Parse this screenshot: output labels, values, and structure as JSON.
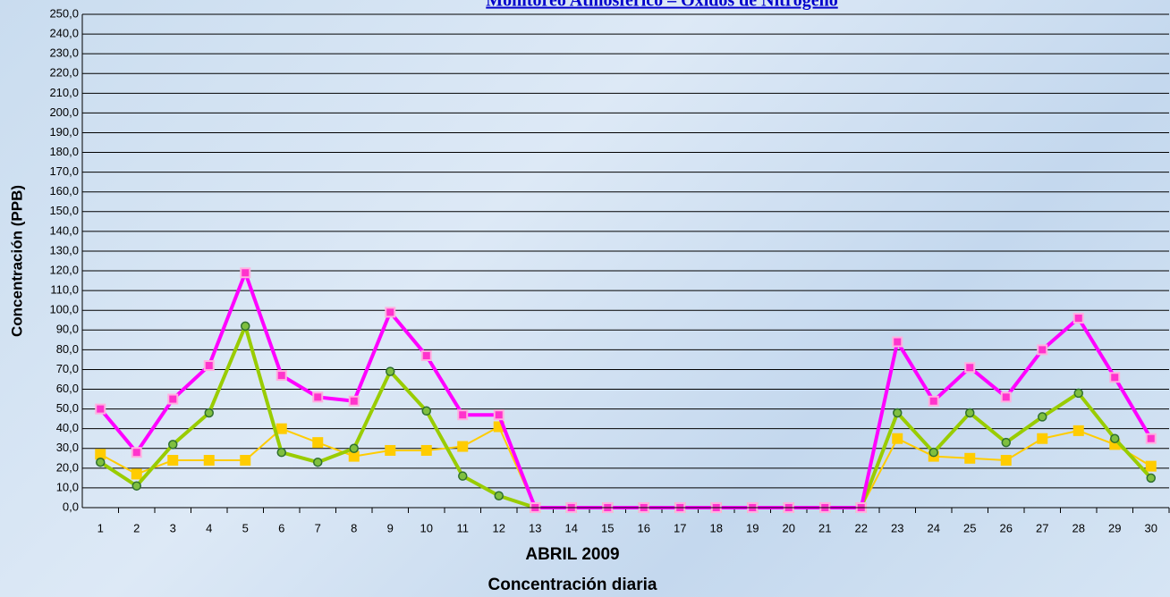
{
  "chart_data": {
    "type": "line",
    "title": "Monitoreo Atmosférico – Óxidos de Nitrógeno",
    "x_label": "ABRIL 2009",
    "subtitle": "Concentración diaria",
    "y_label": "Concentración  (PPB)",
    "categories": [
      1,
      2,
      3,
      4,
      5,
      6,
      7,
      8,
      9,
      10,
      11,
      12,
      13,
      14,
      15,
      16,
      17,
      18,
      19,
      20,
      21,
      22,
      23,
      24,
      25,
      26,
      27,
      28,
      29,
      30
    ],
    "series": [
      {
        "color": "#ffcc00",
        "marker": "square",
        "values": [
          27,
          17,
          24,
          24,
          24,
          40,
          33,
          26,
          29,
          29,
          31,
          41,
          0,
          0,
          0,
          0,
          0,
          0,
          0,
          0,
          0,
          0,
          35,
          26,
          25,
          24,
          35,
          39,
          32,
          21
        ]
      },
      {
        "color": "#99cc00",
        "marker": "circle",
        "values": [
          23,
          11,
          32,
          48,
          92,
          28,
          23,
          30,
          69,
          49,
          16,
          6,
          0,
          0,
          0,
          0,
          0,
          0,
          0,
          0,
          0,
          0,
          48,
          28,
          48,
          33,
          46,
          58,
          35,
          15
        ]
      },
      {
        "color": "#ff00ff",
        "marker": "square",
        "values": [
          50,
          28,
          55,
          72,
          119,
          67,
          56,
          54,
          99,
          77,
          47,
          47,
          0,
          0,
          0,
          0,
          0,
          0,
          0,
          0,
          0,
          0,
          84,
          54,
          71,
          56,
          80,
          96,
          66,
          35
        ]
      }
    ],
    "ylim": [
      0,
      250
    ],
    "yticks": [
      {
        "value": 0,
        "label": "0,0"
      },
      {
        "value": 10,
        "label": "10,0"
      },
      {
        "value": 20,
        "label": "20,0"
      },
      {
        "value": 30,
        "label": "30,0"
      },
      {
        "value": 40,
        "label": "40,0"
      },
      {
        "value": 50,
        "label": "50,0"
      },
      {
        "value": 60,
        "label": "60,0"
      },
      {
        "value": 70,
        "label": "70,0"
      },
      {
        "value": 80,
        "label": "80,0"
      },
      {
        "value": 90,
        "label": "90,0"
      },
      {
        "value": 100,
        "label": "100,0"
      },
      {
        "value": 110,
        "label": "110,0"
      },
      {
        "value": 120,
        "label": "120,0"
      },
      {
        "value": 130,
        "label": "130,0"
      },
      {
        "value": 140,
        "label": "140,0"
      },
      {
        "value": 150,
        "label": "150,0"
      },
      {
        "value": 160,
        "label": "160,0"
      },
      {
        "value": 170,
        "label": "170,0"
      },
      {
        "value": 180,
        "label": "180,0"
      },
      {
        "value": 190,
        "label": "190,0"
      },
      {
        "value": 200,
        "label": "200,0"
      },
      {
        "value": 210,
        "label": "210,0"
      },
      {
        "value": 220,
        "label": "220,0"
      },
      {
        "value": 230,
        "label": "230,0"
      },
      {
        "value": 240,
        "label": "240,0"
      },
      {
        "value": 250,
        "label": "250,0"
      }
    ],
    "grid": true
  }
}
